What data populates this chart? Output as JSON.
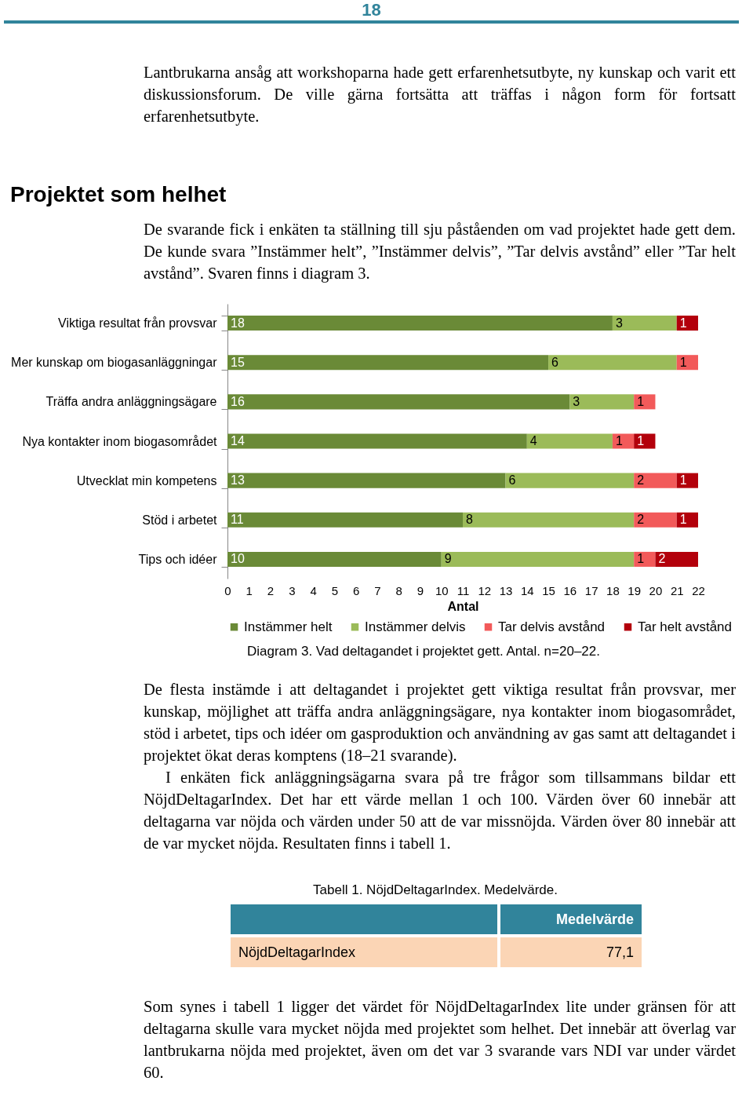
{
  "chart_data": {
    "type": "bar",
    "orientation": "horizontal",
    "stacked": true,
    "title": "Projektet som helhet",
    "xlabel": "Antal",
    "categories": [
      "Viktiga resultat från provsvar",
      "Mer kunskap om biogasanläggningar",
      "Träffa andra anläggningsägare",
      "Nya kontakter inom biogasområdet",
      "Utvecklat min kompetens",
      "Stöd i arbetet",
      "Tips och idéer"
    ],
    "series": [
      {
        "name": "Instämmer helt",
        "color": "#6a8a37",
        "values": [
          18,
          15,
          16,
          14,
          13,
          11,
          10
        ]
      },
      {
        "name": "Instämmer delvis",
        "color": "#9bbb59",
        "values": [
          3,
          6,
          3,
          4,
          6,
          8,
          9
        ]
      },
      {
        "name": "Tar delvis avstånd",
        "color": "#f25a5a",
        "values": [
          null,
          1,
          1,
          1,
          2,
          2,
          1
        ]
      },
      {
        "name": "Tar helt avstånd",
        "color": "#b3000b",
        "values": [
          1,
          null,
          null,
          1,
          1,
          1,
          2
        ]
      }
    ],
    "xlim": [
      0,
      22
    ],
    "xticks": [
      0,
      1,
      2,
      3,
      4,
      5,
      6,
      7,
      8,
      9,
      10,
      11,
      12,
      13,
      14,
      15,
      16,
      17,
      18,
      19,
      20,
      21,
      22
    ],
    "data_labels": true,
    "grid": false,
    "legend": "bottom",
    "annotations": [
      "18",
      "Lantbrukarna ansåg att workshoparna hade gett erfarenhetsutbyte, ny kunskap och varit ett diskussionsforum. De ville gärna fortsätta att träffas i någon form för fortsatt erfarenhetsutbyte.",
      "De svarande fick i enkäten ta ställning till sju påståenden om vad projektet hade gett dem. De kunde svara ”Instämmer helt”, ”Instämmer delvis”, ”Tar delvis avstånd” eller ”Tar helt avstånd”. Svaren finns i diagram 3.",
      "Diagram 3. Vad deltagandet i projektet gett. Antal. n=20–22.",
      "De flesta instämde i att deltagandet i projektet gett viktiga resultat från provsvar, mer kunskap, möjlighet att träffa andra anläggningsägare, nya kontakter inom biogasområdet, stöd i arbetet, tips och idéer om gasproduktion och användning av gas samt att deltagandet i projektet ökat deras komptens (18–21 svarande).",
      "I enkäten fick anläggningsägarna svara på tre frågor som tillsammans bildar ett NöjdDeltagarIndex. Det har ett värde mellan 1 och 100. Värden över 60 innebär att deltagarna var nöjda och värden under 50 att de var missnöjda. Värden över 80 innebär att de var mycket nöjda. Resultaten finns i tabell 1.",
      "Tabell 1. NöjdDeltagarIndex. Medelvärde.",
      "Medelvärde",
      "NöjdDeltagarIndex",
      "77,1",
      "Som synes i tabell 1 ligger det värdet för NöjdDeltagarIndex lite under gränsen för att deltagarna skulle vara mycket nöjda med projektet som helhet. Det innebär att överlag var lantbrukarna nöjda med projektet, även om det var 3 svarande vars NDI var under värdet 60."
    ]
  }
}
